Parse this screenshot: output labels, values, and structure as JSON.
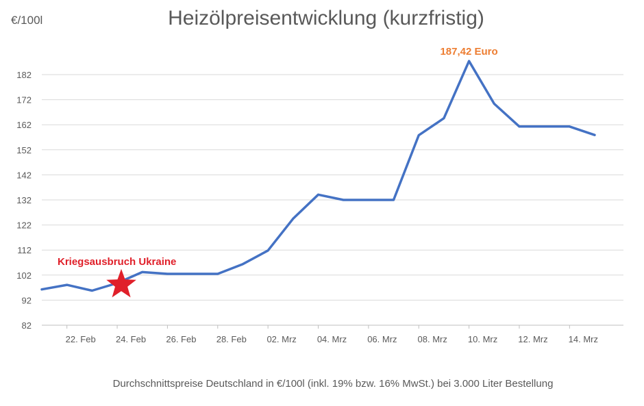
{
  "chart_data": {
    "type": "line",
    "title": "Heizölpreisentwicklung (kurzfristig)",
    "ylabel": "€/100l",
    "xlabel": "",
    "ylim": [
      82,
      187
    ],
    "yticks": [
      82,
      92,
      102,
      112,
      122,
      132,
      142,
      152,
      162,
      172,
      182
    ],
    "xticks": [
      "22. Feb",
      "24. Feb",
      "26. Feb",
      "28. Feb",
      "02. Mrz",
      "04. Mrz",
      "06. Mrz",
      "08. Mrz",
      "10. Mrz",
      "12. Mrz",
      "14. Mrz"
    ],
    "grid": true,
    "legend": "none",
    "series": [
      {
        "color": "#4472C4",
        "points": [
          {
            "x": "21. Feb",
            "y": 96.3
          },
          {
            "x": "22. Feb",
            "y": 98.1
          },
          {
            "x": "23. Feb",
            "y": 95.8
          },
          {
            "x": "24. Feb",
            "y": 98.8
          },
          {
            "x": "25. Feb",
            "y": 103.2
          },
          {
            "x": "26. Feb",
            "y": 102.5
          },
          {
            "x": "27. Feb",
            "y": 102.5
          },
          {
            "x": "28. Feb",
            "y": 102.5
          },
          {
            "x": "01. Mrz",
            "y": 106.4
          },
          {
            "x": "02. Mrz",
            "y": 111.8
          },
          {
            "x": "03. Mrz",
            "y": 124.5
          },
          {
            "x": "04. Mrz",
            "y": 134.1
          },
          {
            "x": "05. Mrz",
            "y": 132.0
          },
          {
            "x": "06. Mrz",
            "y": 132.0
          },
          {
            "x": "07. Mrz",
            "y": 132.0
          },
          {
            "x": "08. Mrz",
            "y": 157.8
          },
          {
            "x": "09. Mrz",
            "y": 164.6
          },
          {
            "x": "10. Mrz",
            "y": 187.42
          },
          {
            "x": "11. Mrz",
            "y": 170.4
          },
          {
            "x": "12. Mrz",
            "y": 161.3
          },
          {
            "x": "13. Mrz",
            "y": 161.3
          },
          {
            "x": "14. Mrz",
            "y": 161.3
          },
          {
            "x": "15. Mrz",
            "y": 157.9
          }
        ]
      }
    ],
    "annotations": [
      {
        "text": "187,42 Euro",
        "x": "10. Mrz",
        "y": 187.42,
        "color": "#ED7D31"
      },
      {
        "text": "Kriegsausbruch Ukraine",
        "x": "24. Feb",
        "y": 99.0,
        "color": "#E0202A",
        "marker": "star"
      }
    ]
  },
  "footnote": "Durchschnittspreise Deutschland in €/100l (inkl. 19% bzw. 16%  MwSt.) bei 3.000 Liter Bestellung"
}
